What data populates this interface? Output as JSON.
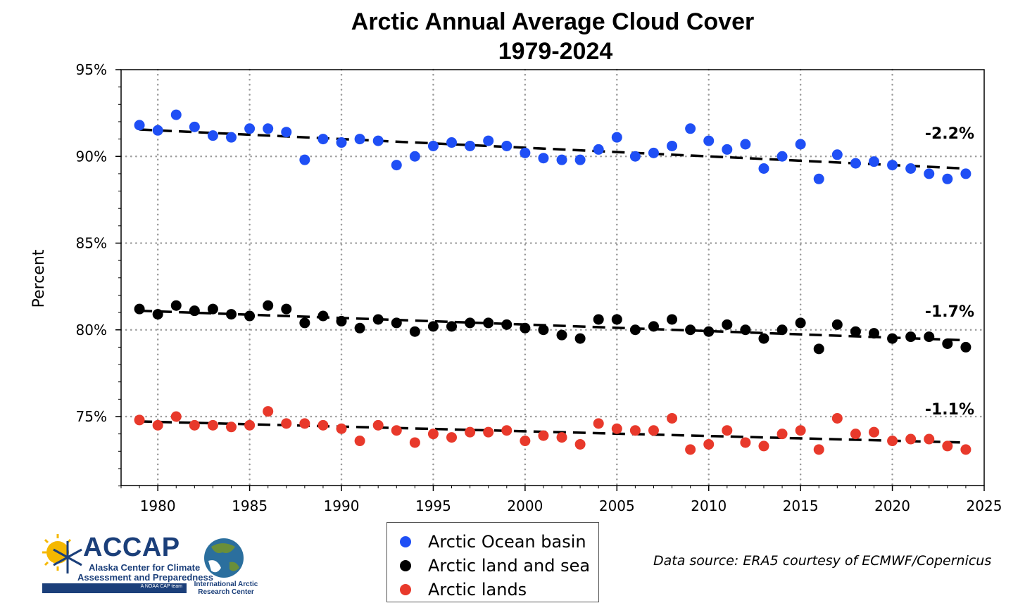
{
  "chart_data": {
    "type": "scatter",
    "title": "Arctic Annual Average Cloud Cover",
    "subtitle": "1979-2024",
    "xlabel": "",
    "ylabel": "Percent",
    "xlim": [
      1978,
      2025
    ],
    "ylim": [
      71,
      95
    ],
    "x_ticks": [
      1980,
      1985,
      1990,
      1995,
      2000,
      2005,
      2010,
      2015,
      2020,
      2025
    ],
    "x_tick_labels": [
      "1980",
      "1985",
      "1990",
      "1995",
      "2000",
      "2005",
      "2010",
      "2015",
      "2020",
      "2025"
    ],
    "y_ticks": [
      75,
      80,
      85,
      90,
      95
    ],
    "y_tick_labels": [
      "75%",
      "80%",
      "85%",
      "90%",
      "95%"
    ],
    "grid": true,
    "legend_position": "bottom-center",
    "x": [
      1979,
      1980,
      1981,
      1982,
      1983,
      1984,
      1985,
      1986,
      1987,
      1988,
      1989,
      1990,
      1991,
      1992,
      1993,
      1994,
      1995,
      1996,
      1997,
      1998,
      1999,
      2000,
      2001,
      2002,
      2003,
      2004,
      2005,
      2006,
      2007,
      2008,
      2009,
      2010,
      2011,
      2012,
      2013,
      2014,
      2015,
      2016,
      2017,
      2018,
      2019,
      2020,
      2021,
      2022,
      2023,
      2024
    ],
    "series": [
      {
        "name": "Arctic Ocean basin",
        "color": "#1f4ff5",
        "values": [
          91.8,
          91.5,
          92.4,
          91.7,
          91.2,
          91.1,
          91.6,
          91.6,
          91.4,
          89.8,
          91.0,
          90.8,
          91.0,
          90.9,
          89.5,
          90.0,
          90.6,
          90.8,
          90.6,
          90.9,
          90.6,
          90.2,
          89.9,
          89.8,
          89.8,
          90.4,
          91.1,
          90.0,
          90.2,
          90.6,
          91.6,
          90.9,
          90.4,
          90.7,
          89.3,
          90.0,
          90.7,
          88.7,
          90.1,
          89.6,
          89.7,
          89.5,
          89.3,
          89.0,
          88.7,
          89.0
        ],
        "trend": {
          "start": 91.55,
          "end": 89.3,
          "label": "-2.2%"
        }
      },
      {
        "name": "Arctic land and sea",
        "color": "#000000",
        "values": [
          81.2,
          80.9,
          81.4,
          81.1,
          81.2,
          80.9,
          80.8,
          81.4,
          81.2,
          80.4,
          80.8,
          80.5,
          80.1,
          80.6,
          80.4,
          79.9,
          80.2,
          80.2,
          80.4,
          80.4,
          80.3,
          80.1,
          80.0,
          79.7,
          79.5,
          80.6,
          80.6,
          80.0,
          80.2,
          80.6,
          80.0,
          79.9,
          80.3,
          80.0,
          79.5,
          80.0,
          80.4,
          78.9,
          80.3,
          79.9,
          79.8,
          79.5,
          79.6,
          79.6,
          79.2,
          79.0
        ],
        "trend": {
          "start": 81.1,
          "end": 79.4,
          "label": "-1.7%"
        }
      },
      {
        "name": "Arctic lands",
        "color": "#e8392b",
        "values": [
          74.8,
          74.5,
          75.0,
          74.5,
          74.5,
          74.4,
          74.5,
          75.3,
          74.6,
          74.6,
          74.5,
          74.3,
          73.6,
          74.5,
          74.2,
          73.5,
          74.0,
          73.8,
          74.1,
          74.1,
          74.2,
          73.6,
          73.9,
          73.8,
          73.4,
          74.6,
          74.3,
          74.2,
          74.2,
          74.9,
          73.1,
          73.4,
          74.2,
          73.5,
          73.3,
          74.0,
          74.2,
          73.1,
          74.9,
          74.0,
          74.1,
          73.6,
          73.7,
          73.7,
          73.3,
          73.1
        ],
        "trend": {
          "start": 74.72,
          "end": 73.5,
          "label": "-1.1%"
        }
      }
    ]
  },
  "footer": {
    "data_source": "Data source: ERA5 courtesy of ECMWF/Copernicus",
    "accap": {
      "wordmark": "ACCAP",
      "line1": "Alaska Center for Climate",
      "line2": "Assessment and Preparedness",
      "tagline": "A NOAA CAP team"
    },
    "iarc": {
      "line1": "International Arctic",
      "line2": "Research Center"
    }
  }
}
